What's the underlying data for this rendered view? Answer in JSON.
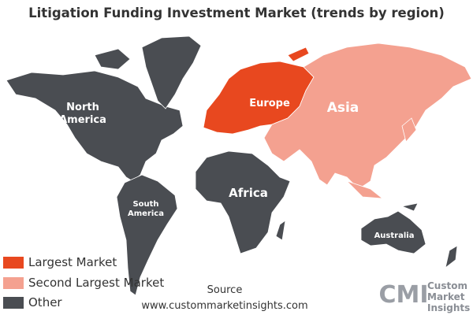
{
  "title": "Litigation Funding Investment Market (trends by region)",
  "regions": [
    {
      "lines": [
        "North",
        "America"
      ],
      "color": "#4a4d52"
    },
    {
      "lines": [
        "South",
        "America"
      ],
      "color": "#4a4d52"
    },
    {
      "lines": [
        "Europe"
      ],
      "color": "#e8481f"
    },
    {
      "lines": [
        "Asia"
      ],
      "color": "#f4a190"
    },
    {
      "lines": [
        "Africa"
      ],
      "color": "#4a4d52"
    },
    {
      "lines": [
        "Australia"
      ],
      "color": "#4a4d52"
    }
  ],
  "legend": [
    {
      "label": "Largest Market",
      "color": "#e8481f"
    },
    {
      "label": "Second Largest Market",
      "color": "#f4a190"
    },
    {
      "label": "Other",
      "color": "#4a4d52"
    }
  ],
  "source": {
    "label": "Source",
    "url": "www.custommarketinsights.com"
  },
  "logo": {
    "mark": "CMI",
    "lines": [
      "Custom",
      "Market",
      "Insights"
    ]
  }
}
